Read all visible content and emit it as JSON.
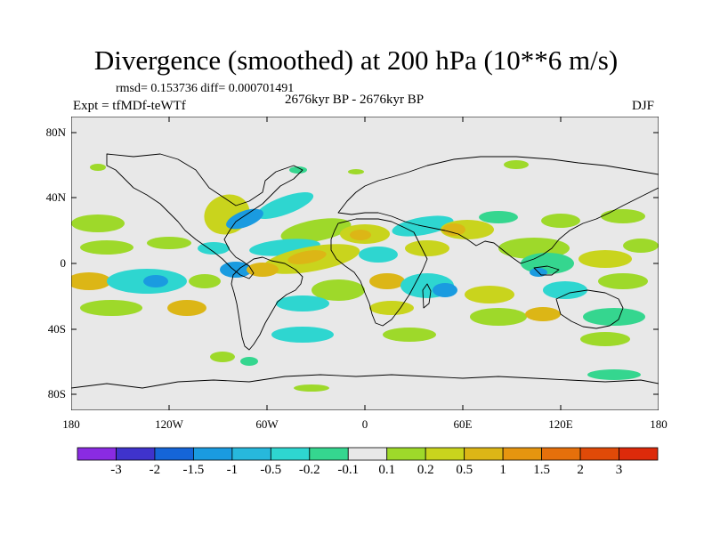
{
  "title": "Divergence (smoothed) at 200 hPa (10**6 m/s)",
  "stats": "rmsd= 0.153736 diff= 0.000701491",
  "experiment": "Expt = tfMDf-teWTf",
  "period": "2676kyr BP - 2676kyr BP",
  "season": "DJF",
  "lat_labels": [
    "80N",
    "40N",
    "0",
    "40S",
    "80S"
  ],
  "lon_labels": [
    "180",
    "120W",
    "60W",
    "0",
    "60E",
    "120E",
    "180"
  ],
  "colorbar": {
    "colors": [
      "#8a2be2",
      "#3f33cc",
      "#1565d8",
      "#1a9be0",
      "#27b8dc",
      "#2ed6d0",
      "#35d68f",
      "#e8e8e8",
      "#9ed92a",
      "#c9d41d",
      "#dcb616",
      "#e6950f",
      "#e6700b",
      "#e04a08",
      "#dd2a0a"
    ],
    "labels": [
      "-3",
      "-2",
      "-1.5",
      "-1",
      "-0.5",
      "-0.2",
      "-0.1",
      "0.1",
      "0.2",
      "0.5",
      "1",
      "1.5",
      "2",
      "3"
    ]
  }
}
